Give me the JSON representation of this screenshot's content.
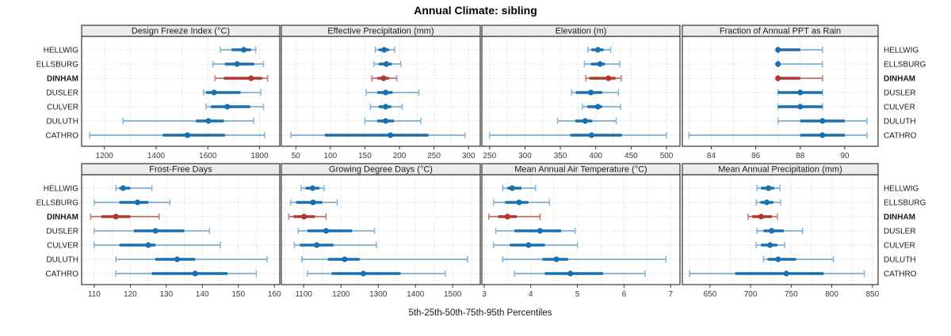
{
  "title": "Annual Climate: sibling",
  "footer": "5th-25th-50th-75th-95th Percentiles",
  "sites": [
    "HELLWIG",
    "ELLSBURG",
    "DINHAM",
    "DUSLER",
    "CULVER",
    "DULUTH",
    "CATHRO"
  ],
  "highlight_site": "DINHAM",
  "percentile_labels": [
    "5th",
    "25th",
    "50th",
    "75th",
    "95th"
  ],
  "colors": {
    "normal_dark": "#1a6fae",
    "normal_light": "#8ab8d8",
    "highlight_dark": "#b2362e",
    "highlight_light": "#c97f78",
    "grid": "#c9c9c9",
    "strip_bg": "#ececec",
    "border": "#333333",
    "text": "#1a1a1a",
    "tick_text": "#3c3c3c"
  },
  "chart_data": [
    {
      "type": "dot-whisker",
      "title": "Design Freeze Index (°C)",
      "row": 0,
      "col": 0,
      "xlim": [
        1112,
        1878
      ],
      "ticks": [
        1200,
        1400,
        1600,
        1800
      ],
      "minor_step": 100,
      "values": [
        [
          1648,
          1692,
          1739,
          1767,
          1785
        ],
        [
          1620,
          1666,
          1713,
          1779,
          1815
        ],
        [
          1628,
          1662,
          1767,
          1810,
          1831
        ],
        [
          1583,
          1593,
          1624,
          1726,
          1805
        ],
        [
          1593,
          1612,
          1675,
          1764,
          1815
        ],
        [
          1272,
          1554,
          1602,
          1662,
          1777
        ],
        [
          1143,
          1426,
          1521,
          1666,
          1820
        ]
      ]
    },
    {
      "type": "dot-whisker",
      "title": "Effective Precipitation (mm)",
      "row": 0,
      "col": 1,
      "xlim": [
        29,
        317
      ],
      "ticks": [
        50,
        100,
        150,
        200,
        250,
        300
      ],
      "minor_step": 25,
      "values": [
        [
          165,
          170,
          178,
          185,
          193
        ],
        [
          163,
          170,
          181,
          189,
          202
        ],
        [
          160,
          168,
          177,
          185,
          196
        ],
        [
          152,
          168,
          180,
          190,
          228
        ],
        [
          158,
          170,
          180,
          188,
          204
        ],
        [
          150,
          168,
          180,
          192,
          231
        ],
        [
          43,
          92,
          187,
          242,
          295
        ]
      ]
    },
    {
      "type": "dot-whisker",
      "title": "Elevation (m)",
      "row": 0,
      "col": 2,
      "xlim": [
        239,
        519
      ],
      "ticks": [
        250,
        300,
        350,
        400,
        450,
        500
      ],
      "minor_step": 25,
      "values": [
        [
          389,
          394,
          403,
          411,
          421
        ],
        [
          384,
          393,
          406,
          413,
          434
        ],
        [
          386,
          391,
          418,
          428,
          436
        ],
        [
          366,
          372,
          393,
          409,
          432
        ],
        [
          381,
          388,
          403,
          409,
          435
        ],
        [
          346,
          371,
          385,
          395,
          429
        ],
        [
          250,
          364,
          394,
          437,
          500
        ]
      ]
    },
    {
      "type": "dot-whisker",
      "title": "Fraction of Annual PPT as Rain",
      "row": 0,
      "col": 3,
      "xlim": [
        82.7,
        91.5
      ],
      "ticks": [
        84,
        86,
        88,
        90
      ],
      "minor_step": 1,
      "values": [
        [
          87,
          87,
          87,
          88,
          89
        ],
        [
          87,
          87,
          87,
          87,
          89
        ],
        [
          87,
          87,
          87,
          88,
          89
        ],
        [
          87,
          87,
          88,
          89,
          89
        ],
        [
          87,
          87,
          88,
          89,
          89
        ],
        [
          87,
          88,
          89,
          90,
          91
        ],
        [
          83,
          88,
          89,
          90,
          91
        ]
      ]
    },
    {
      "type": "dot-whisker",
      "title": "Frost-Free Days",
      "row": 1,
      "col": 0,
      "xlim": [
        106.5,
        161.5
      ],
      "ticks": [
        110,
        120,
        130,
        140,
        150,
        160
      ],
      "minor_step": 5,
      "values": [
        [
          116,
          117,
          118,
          120,
          126
        ],
        [
          110,
          117,
          122,
          125,
          131
        ],
        [
          109,
          112,
          116,
          120,
          128
        ],
        [
          110,
          121,
          127,
          135,
          142
        ],
        [
          110,
          117,
          125,
          127,
          145
        ],
        [
          116,
          127,
          133,
          138,
          158
        ],
        [
          116,
          126,
          138,
          147,
          155
        ]
      ]
    },
    {
      "type": "dot-whisker",
      "title": "Growing Degree Days (°C)",
      "row": 1,
      "col": 1,
      "xlim": [
        1040,
        1574
      ],
      "ticks": [
        1100,
        1200,
        1300,
        1400,
        1500
      ],
      "minor_step": 50,
      "values": [
        [
          1093,
          1105,
          1124,
          1142,
          1155
        ],
        [
          1065,
          1080,
          1125,
          1150,
          1190
        ],
        [
          1060,
          1073,
          1101,
          1130,
          1160
        ],
        [
          1085,
          1110,
          1160,
          1230,
          1290
        ],
        [
          1075,
          1090,
          1135,
          1180,
          1295
        ],
        [
          1095,
          1165,
          1210,
          1250,
          1540
        ],
        [
          1110,
          1175,
          1260,
          1360,
          1480
        ]
      ]
    },
    {
      "type": "dot-whisker",
      "title": "Mean Annual Air Temperature (°C)",
      "row": 1,
      "col": 2,
      "xlim": [
        2.95,
        7.2
      ],
      "ticks": [
        3,
        4,
        5,
        6,
        7
      ],
      "minor_step": 0.5,
      "values": [
        [
          3.4,
          3.5,
          3.6,
          3.8,
          4.1
        ],
        [
          3.2,
          3.45,
          3.75,
          3.95,
          4.4
        ],
        [
          3.1,
          3.3,
          3.5,
          3.7,
          4.2
        ],
        [
          3.25,
          3.65,
          4.2,
          4.65,
          4.95
        ],
        [
          3.2,
          3.55,
          3.95,
          4.3,
          5.0
        ],
        [
          3.4,
          4.25,
          4.55,
          4.8,
          6.9
        ],
        [
          3.65,
          4.3,
          4.85,
          5.55,
          6.45
        ]
      ]
    },
    {
      "type": "dot-whisker",
      "title": "Mean Annual Precipitation (mm)",
      "row": 1,
      "col": 3,
      "xlim": [
        616,
        857
      ],
      "ticks": [
        650,
        700,
        750,
        800,
        850
      ],
      "minor_step": 25,
      "values": [
        [
          708,
          713,
          722,
          729,
          736
        ],
        [
          707,
          712,
          720,
          728,
          737
        ],
        [
          697,
          702,
          713,
          726,
          733
        ],
        [
          708,
          716,
          726,
          741,
          764
        ],
        [
          707,
          713,
          724,
          733,
          742
        ],
        [
          716,
          721,
          734,
          756,
          802
        ],
        [
          625,
          681,
          744,
          790,
          840
        ]
      ]
    }
  ]
}
